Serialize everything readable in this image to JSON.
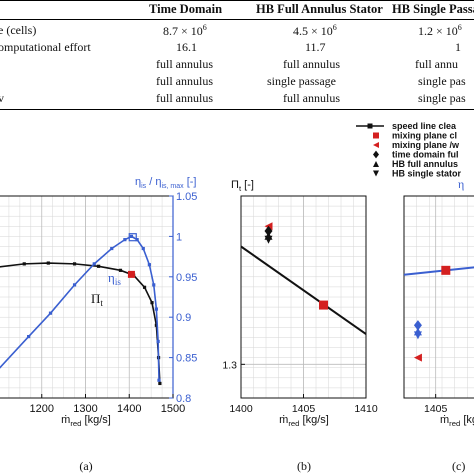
{
  "table": {
    "headers": [
      "Time Domain",
      "HB Full Annulus Stator",
      "HB Single Passa"
    ],
    "rows": [
      {
        "label": "e (cells)",
        "cells": [
          "8.7 × 10",
          "4.5 × 10",
          "1.2 × 10"
        ],
        "sup": [
          "6",
          "6",
          "6"
        ]
      },
      {
        "label": "omputational effort",
        "cells": [
          "16.1",
          "11.7",
          "1"
        ]
      },
      {
        "label": "",
        "cells": [
          "full annulus",
          "full annulus",
          "full annu"
        ]
      },
      {
        "label": "",
        "cells": [
          "full annulus",
          "single passage",
          "single pas"
        ]
      },
      {
        "label": "v",
        "cells": [
          "full annulus",
          "full annulus",
          "single pas"
        ]
      }
    ]
  },
  "legend": {
    "entries": [
      {
        "label": "speed line clea",
        "marker": "square-line",
        "color": "#111111"
      },
      {
        "label": "mixing plane cl",
        "marker": "square",
        "color": "#d42020"
      },
      {
        "label": "mixing plane /w",
        "marker": "triangle-left",
        "color": "#d42020"
      },
      {
        "label": "time domain ful",
        "marker": "diamond",
        "color": "#111111"
      },
      {
        "label": "HB full annulus",
        "marker": "triangle-up",
        "color": "#111111"
      },
      {
        "label": "HB single stator",
        "marker": "triangle-down",
        "color": "#111111"
      }
    ]
  },
  "colors": {
    "pi_line": "#111111",
    "eta_line": "#3a5fd0",
    "mixing_plane": "#d42020",
    "grid": "#d6d6d6"
  },
  "chart_data": [
    {
      "type": "line",
      "panel_label": "(a)",
      "xlabel": "ṁ",
      "xlabel_sub": "red",
      "xlabel_unit": "[kg/s]",
      "ylabel_right": "η",
      "ylabel_right_sub": "is",
      "ylabel_right_rest": " / η",
      "ylabel_right_sub2": "is, max",
      "ylabel_right_unit": " [-]",
      "xlim": [
        1100,
        1500
      ],
      "xticks": [
        "1200",
        "1300",
        "1400",
        "1500"
      ],
      "y2lim": [
        0.8,
        1.05
      ],
      "y2ticks": [
        "0.8",
        "0.85",
        "0.9",
        "0.95",
        "1",
        "1.05"
      ],
      "annotations": [
        {
          "text": "η",
          "sub": "is",
          "series": "eta"
        },
        {
          "text": "Π",
          "sub": "t",
          "series": "pi"
        }
      ],
      "series": [
        {
          "key": "pi",
          "color": "#111111",
          "x": [
            1100,
            1160,
            1215,
            1275,
            1330,
            1380,
            1410,
            1435,
            1452,
            1462,
            1467,
            1470
          ],
          "y": [
            0.962,
            0.966,
            0.967,
            0.966,
            0.963,
            0.958,
            0.952,
            0.937,
            0.918,
            0.89,
            0.85,
            0.818
          ]
        },
        {
          "key": "eta",
          "color": "#3a5fd0",
          "x": [
            1100,
            1170,
            1220,
            1275,
            1320,
            1360,
            1390,
            1405,
            1418,
            1432,
            1446,
            1456,
            1462,
            1466,
            1468
          ],
          "y": [
            0.835,
            0.876,
            0.905,
            0.94,
            0.966,
            0.985,
            0.996,
            1.0,
            0.996,
            0.985,
            0.965,
            0.94,
            0.91,
            0.87,
            0.822
          ]
        }
      ],
      "points": [
        {
          "x": 1405,
          "y": 0.953,
          "marker": "square",
          "color": "#d42020"
        },
        {
          "x": 1408,
          "y": 0.999,
          "marker": "square-open",
          "color": "#3a5fd0"
        }
      ]
    },
    {
      "type": "line",
      "panel_label": "(b)",
      "xlabel": "ṁ",
      "xlabel_sub": "red",
      "xlabel_unit": "[kg/s]",
      "ylabel": "Π",
      "ylabel_sub": "t",
      "ylabel_unit": " [-]",
      "xlim": [
        1400,
        1410
      ],
      "xticks": [
        "1400",
        "1405",
        "1410"
      ],
      "ylim": [
        1.295,
        1.325
      ],
      "yticks": [
        "1.3"
      ],
      "series": [
        {
          "key": "pi_zoom",
          "color": "#111111",
          "x": [
            1400,
            1410
          ],
          "y": [
            1.3175,
            1.3045
          ]
        }
      ],
      "points": [
        {
          "x": 1406.6,
          "y": 1.3088,
          "marker": "square",
          "color": "#d42020"
        },
        {
          "x": 1402.2,
          "y": 1.3205,
          "marker": "triangle-left",
          "color": "#d42020"
        },
        {
          "x": 1402.2,
          "y": 1.3198,
          "marker": "diamond",
          "color": "#111111"
        },
        {
          "x": 1402.2,
          "y": 1.3191,
          "marker": "triangle-up",
          "color": "#111111"
        },
        {
          "x": 1402.2,
          "y": 1.3185,
          "marker": "triangle-down",
          "color": "#111111"
        }
      ]
    },
    {
      "type": "line",
      "panel_label": "(c)",
      "xlabel": "ṁ",
      "xlabel_sub": "red",
      "xlabel_unit": "[kg/s]",
      "ylabel": "η",
      "xlim": [
        1400,
        1412
      ],
      "xticks": [
        "1405"
      ],
      "ylim": [
        0,
        1
      ],
      "series": [
        {
          "key": "eta_zoom",
          "color": "#3a5fd0",
          "x": [
            1400,
            1412
          ],
          "y": [
            0.61,
            0.65
          ]
        }
      ],
      "points": [
        {
          "x": 1406.6,
          "y": 0.632,
          "marker": "square",
          "color": "#d42020"
        },
        {
          "x": 1402.2,
          "y": 0.36,
          "marker": "diamond",
          "color": "#3a5fd0"
        },
        {
          "x": 1402.2,
          "y": 0.33,
          "marker": "triangle-up",
          "color": "#3a5fd0"
        },
        {
          "x": 1402.2,
          "y": 0.31,
          "marker": "triangle-down",
          "color": "#3a5fd0"
        },
        {
          "x": 1402.2,
          "y": 0.2,
          "marker": "triangle-left",
          "color": "#d42020"
        }
      ]
    }
  ]
}
